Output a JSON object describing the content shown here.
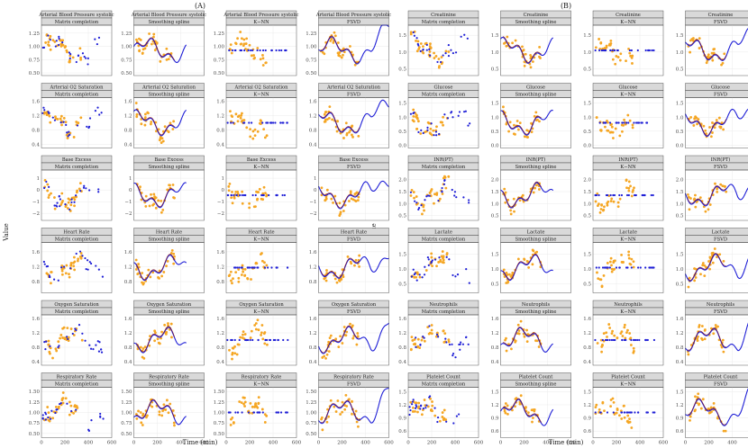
{
  "chart_data": {
    "type": "scatter",
    "time_axis_label": "Time (min)",
    "value_axis_label": "Value",
    "x_ticks": [
      0,
      200,
      400,
      600
    ],
    "xlim": [
      0,
      600
    ],
    "methods": [
      "Matrix completion",
      "Smoothing spline",
      "K−NN",
      "FSVD"
    ],
    "legend": {
      "observed_color": "#f5a623",
      "fitted_color": "#1f1fd6"
    },
    "groups": [
      {
        "label": "(A)",
        "variables": [
          {
            "name": "Arterial Blood Pressure systolic",
            "y_ticks": [
              "0.50",
              "0.75",
              "1.00",
              "1.25"
            ],
            "ylim": [
              0.45,
              1.4
            ],
            "y_values": [
              0.5,
              0.75,
              1.0,
              1.25
            ]
          },
          {
            "name": "Arterial O2 Saturation",
            "y_ticks": [
              "0.4",
              "0.8",
              "1.2",
              "1.6"
            ],
            "ylim": [
              0.3,
              1.7
            ],
            "y_values": [
              0.4,
              0.8,
              1.2,
              1.6
            ]
          },
          {
            "name": "Base Excess",
            "y_ticks": [
              "−2",
              "−1",
              "0",
              "1"
            ],
            "ylim": [
              -2.6,
              1.7
            ],
            "y_values": [
              -2,
              -1,
              0,
              1
            ]
          },
          {
            "name": "Heart Rate",
            "y_ticks": [
              "0.8",
              "1.2",
              "1.6"
            ],
            "ylim": [
              0.5,
              1.85
            ],
            "y_values": [
              0.8,
              1.2,
              1.6
            ]
          },
          {
            "name": "Oxygen Saturation",
            "y_ticks": [
              "0.4",
              "0.8",
              "1.2",
              "1.6"
            ],
            "ylim": [
              0.3,
              1.7
            ],
            "y_values": [
              0.4,
              0.8,
              1.2,
              1.6
            ]
          },
          {
            "name": "Respiratory Rate",
            "y_ticks": [
              "0.50",
              "0.75",
              "1.00",
              "1.25",
              "1.50"
            ],
            "ylim": [
              0.4,
              1.6
            ],
            "y_values": [
              0.5,
              0.75,
              1.0,
              1.25,
              1.5
            ]
          }
        ]
      },
      {
        "label": "(B)",
        "variables": [
          {
            "name": "Creatinine",
            "y_ticks": [
              "0.5",
              "1.0",
              "1.5"
            ],
            "ylim": [
              0.3,
              1.8
            ],
            "y_values": [
              0.5,
              1.0,
              1.5
            ]
          },
          {
            "name": "Glucose",
            "y_ticks": [
              "0.0",
              "0.5",
              "1.0",
              "1.5"
            ],
            "ylim": [
              -0.1,
              1.7
            ],
            "y_values": [
              0.0,
              0.5,
              1.0,
              1.5
            ]
          },
          {
            "name": "INR(PT)",
            "y_ticks": [
              "0.5",
              "1.0",
              "1.5",
              "2.0"
            ],
            "ylim": [
              0.3,
              2.4
            ],
            "y_values": [
              0.5,
              1.0,
              1.5,
              2.0
            ]
          },
          {
            "name": "Lactate",
            "y_ticks": [
              "0.5",
              "1.0",
              "1.5"
            ],
            "ylim": [
              0.2,
              1.9
            ],
            "y_values": [
              0.5,
              1.0,
              1.5
            ]
          },
          {
            "name": "Neutrophils",
            "y_ticks": [
              "0.4",
              "0.8",
              "1.2",
              "1.6"
            ],
            "ylim": [
              0.3,
              1.7
            ],
            "y_values": [
              0.4,
              0.8,
              1.2,
              1.6
            ]
          },
          {
            "name": "Platelet Count",
            "y_ticks": [
              "0.6",
              "0.9",
              "1.2",
              "1.5"
            ],
            "ylim": [
              0.45,
              1.6
            ],
            "y_values": [
              0.6,
              0.9,
              1.2,
              1.5
            ]
          }
        ]
      }
    ]
  }
}
